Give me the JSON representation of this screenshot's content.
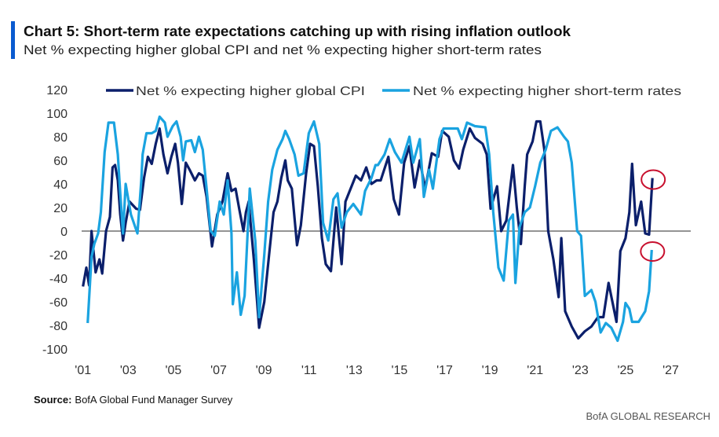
{
  "header": {
    "title": "Chart 5: Short-term rate expectations catching up with rising inflation outlook",
    "subtitle": "Net % expecting higher global CPI and net % expecting higher short-term rates",
    "accent_color": "#0a5bd0"
  },
  "footer": {
    "source_label": "Source:",
    "source_text": "BofA Global Fund Manager Survey",
    "brand": "BofA GLOBAL RESEARCH"
  },
  "chart_data": {
    "type": "line",
    "title": "",
    "xlabel": "",
    "ylabel": "",
    "ylim": [
      -100,
      120
    ],
    "xlim": [
      2001,
      2027
    ],
    "y_ticks": [
      "120",
      "100",
      "80",
      "60",
      "40",
      "20",
      "0",
      "-20",
      "-40",
      "-60",
      "-80",
      "-100"
    ],
    "x_ticks": [
      "'01",
      "'03",
      "'05",
      "'07",
      "'09",
      "'11",
      "'13",
      "'15",
      "'17",
      "'19",
      "'21",
      "'23",
      "'25",
      "'27"
    ],
    "grid": false,
    "zero_line": true,
    "legend_position": "top",
    "highlight": "red circles around the latest value of each series",
    "highlight_color": "#c8102e",
    "series": [
      {
        "name": "Net % expecting higher global CPI",
        "color": "#0b1f6b",
        "points": [
          [
            2001.0,
            -47
          ],
          [
            2001.15,
            -31
          ],
          [
            2001.27,
            -46
          ],
          [
            2001.38,
            0
          ],
          [
            2001.56,
            -35
          ],
          [
            2001.73,
            -24
          ],
          [
            2001.85,
            -36
          ],
          [
            2002.02,
            0
          ],
          [
            2002.19,
            12
          ],
          [
            2002.31,
            54
          ],
          [
            2002.42,
            56
          ],
          [
            2002.54,
            43
          ],
          [
            2002.65,
            14
          ],
          [
            2002.77,
            -8
          ],
          [
            2002.89,
            7
          ],
          [
            2003.06,
            25
          ],
          [
            2003.35,
            19
          ],
          [
            2003.52,
            18
          ],
          [
            2003.7,
            45
          ],
          [
            2003.87,
            63
          ],
          [
            2004.04,
            57
          ],
          [
            2004.22,
            74
          ],
          [
            2004.39,
            87
          ],
          [
            2004.56,
            65
          ],
          [
            2004.74,
            49
          ],
          [
            2004.91,
            63
          ],
          [
            2005.08,
            74
          ],
          [
            2005.2,
            58
          ],
          [
            2005.37,
            23
          ],
          [
            2005.55,
            58
          ],
          [
            2005.72,
            52
          ],
          [
            2005.95,
            43
          ],
          [
            2006.13,
            49
          ],
          [
            2006.3,
            47
          ],
          [
            2006.47,
            29
          ],
          [
            2006.71,
            -13
          ],
          [
            2006.94,
            14
          ],
          [
            2007.17,
            25
          ],
          [
            2007.4,
            49
          ],
          [
            2007.57,
            34
          ],
          [
            2007.75,
            36
          ],
          [
            2007.92,
            18
          ],
          [
            2008.1,
            0
          ],
          [
            2008.21,
            16
          ],
          [
            2008.33,
            25
          ],
          [
            2008.56,
            -24
          ],
          [
            2008.79,
            -82
          ],
          [
            2009.02,
            -60
          ],
          [
            2009.25,
            -17
          ],
          [
            2009.43,
            16
          ],
          [
            2009.6,
            25
          ],
          [
            2009.77,
            45
          ],
          [
            2009.95,
            60
          ],
          [
            2010.06,
            43
          ],
          [
            2010.24,
            36
          ],
          [
            2010.47,
            -12
          ],
          [
            2010.64,
            5
          ],
          [
            2010.87,
            49
          ],
          [
            2011.05,
            74
          ],
          [
            2011.22,
            72
          ],
          [
            2011.39,
            38
          ],
          [
            2011.57,
            -6
          ],
          [
            2011.74,
            -28
          ],
          [
            2011.97,
            -34
          ],
          [
            2012.2,
            20
          ],
          [
            2012.44,
            -28
          ],
          [
            2012.61,
            25
          ],
          [
            2012.84,
            36
          ],
          [
            2013.07,
            47
          ],
          [
            2013.3,
            43
          ],
          [
            2013.53,
            54
          ],
          [
            2013.76,
            40
          ],
          [
            2013.99,
            43
          ],
          [
            2014.17,
            43
          ],
          [
            2014.51,
            63
          ],
          [
            2014.75,
            27
          ],
          [
            2014.98,
            14
          ],
          [
            2015.21,
            58
          ],
          [
            2015.44,
            72
          ],
          [
            2015.67,
            37
          ],
          [
            2015.9,
            60
          ],
          [
            2016.14,
            36
          ],
          [
            2016.43,
            66
          ],
          [
            2016.71,
            63
          ],
          [
            2016.89,
            85
          ],
          [
            2017.18,
            80
          ],
          [
            2017.41,
            60
          ],
          [
            2017.64,
            53
          ],
          [
            2017.82,
            69
          ],
          [
            2018.11,
            87
          ],
          [
            2018.34,
            79
          ],
          [
            2018.68,
            74
          ],
          [
            2018.86,
            65
          ],
          [
            2019.03,
            19
          ],
          [
            2019.32,
            38
          ],
          [
            2019.5,
            0
          ],
          [
            2019.73,
            9
          ],
          [
            2020.02,
            56
          ],
          [
            2020.19,
            20
          ],
          [
            2020.37,
            -11
          ],
          [
            2020.54,
            38
          ],
          [
            2020.65,
            65
          ],
          [
            2020.89,
            76
          ],
          [
            2021.06,
            93
          ],
          [
            2021.23,
            93
          ],
          [
            2021.41,
            69
          ],
          [
            2021.58,
            0
          ],
          [
            2021.81,
            -24
          ],
          [
            2022.04,
            -56
          ],
          [
            2022.16,
            -6
          ],
          [
            2022.33,
            -68
          ],
          [
            2022.62,
            -81
          ],
          [
            2022.91,
            -91
          ],
          [
            2023.2,
            -85
          ],
          [
            2023.49,
            -81
          ],
          [
            2023.78,
            -73
          ],
          [
            2024.02,
            -73
          ],
          [
            2024.25,
            -44
          ],
          [
            2024.42,
            -60
          ],
          [
            2024.6,
            -77
          ],
          [
            2024.77,
            -17
          ],
          [
            2025.0,
            -6
          ],
          [
            2025.17,
            16
          ],
          [
            2025.29,
            57
          ],
          [
            2025.46,
            5
          ],
          [
            2025.69,
            25
          ],
          [
            2025.87,
            -2
          ],
          [
            2026.04,
            -3
          ],
          [
            2026.19,
            45
          ]
        ]
      },
      {
        "name": "Net % expecting higher short-term rates",
        "color": "#1aa3e0",
        "points": [
          [
            2001.21,
            -78
          ],
          [
            2001.38,
            -22
          ],
          [
            2001.5,
            -11
          ],
          [
            2001.67,
            -2
          ],
          [
            2001.79,
            16
          ],
          [
            2001.96,
            67
          ],
          [
            2002.13,
            92
          ],
          [
            2002.37,
            92
          ],
          [
            2002.54,
            65
          ],
          [
            2002.65,
            32
          ],
          [
            2002.77,
            -2
          ],
          [
            2002.89,
            40
          ],
          [
            2003.12,
            14
          ],
          [
            2003.41,
            -2
          ],
          [
            2003.58,
            43
          ],
          [
            2003.64,
            65
          ],
          [
            2003.81,
            83
          ],
          [
            2004.04,
            83
          ],
          [
            2004.22,
            85
          ],
          [
            2004.39,
            97
          ],
          [
            2004.62,
            92
          ],
          [
            2004.74,
            80
          ],
          [
            2004.97,
            89
          ],
          [
            2005.14,
            93
          ],
          [
            2005.32,
            80
          ],
          [
            2005.43,
            60
          ],
          [
            2005.55,
            76
          ],
          [
            2005.79,
            77
          ],
          [
            2005.95,
            67
          ],
          [
            2006.13,
            80
          ],
          [
            2006.3,
            69
          ],
          [
            2006.47,
            36
          ],
          [
            2006.65,
            0
          ],
          [
            2006.83,
            -4
          ],
          [
            2007.05,
            25
          ],
          [
            2007.23,
            14
          ],
          [
            2007.4,
            43
          ],
          [
            2007.57,
            -2
          ],
          [
            2007.63,
            -62
          ],
          [
            2007.81,
            -35
          ],
          [
            2007.98,
            -71
          ],
          [
            2008.15,
            -55
          ],
          [
            2008.38,
            36
          ],
          [
            2008.62,
            -8
          ],
          [
            2008.79,
            -73
          ],
          [
            2009.02,
            -20
          ],
          [
            2009.19,
            25
          ],
          [
            2009.37,
            52
          ],
          [
            2009.6,
            69
          ],
          [
            2009.83,
            78
          ],
          [
            2009.95,
            85
          ],
          [
            2010.12,
            78
          ],
          [
            2010.36,
            65
          ],
          [
            2010.53,
            47
          ],
          [
            2010.76,
            49
          ],
          [
            2010.99,
            83
          ],
          [
            2011.22,
            93
          ],
          [
            2011.45,
            74
          ],
          [
            2011.62,
            7
          ],
          [
            2011.85,
            -8
          ],
          [
            2012.08,
            27
          ],
          [
            2012.26,
            32
          ],
          [
            2012.44,
            3
          ],
          [
            2012.67,
            16
          ],
          [
            2012.96,
            23
          ],
          [
            2013.3,
            14
          ],
          [
            2013.48,
            34
          ],
          [
            2013.76,
            45
          ],
          [
            2013.94,
            56
          ],
          [
            2014.05,
            56
          ],
          [
            2014.34,
            65
          ],
          [
            2014.57,
            78
          ],
          [
            2014.8,
            67
          ],
          [
            2015.09,
            58
          ],
          [
            2015.44,
            80
          ],
          [
            2015.61,
            58
          ],
          [
            2015.9,
            78
          ],
          [
            2016.08,
            29
          ],
          [
            2016.31,
            52
          ],
          [
            2016.48,
            36
          ],
          [
            2016.77,
            78
          ],
          [
            2016.95,
            87
          ],
          [
            2017.29,
            87
          ],
          [
            2017.58,
            87
          ],
          [
            2017.76,
            78
          ],
          [
            2017.99,
            92
          ],
          [
            2018.34,
            89
          ],
          [
            2018.8,
            88
          ],
          [
            2018.97,
            65
          ],
          [
            2019.15,
            16
          ],
          [
            2019.38,
            -31
          ],
          [
            2019.61,
            -42
          ],
          [
            2019.84,
            9
          ],
          [
            2020.02,
            14
          ],
          [
            2020.13,
            -44
          ],
          [
            2020.31,
            3
          ],
          [
            2020.54,
            16
          ],
          [
            2020.77,
            20
          ],
          [
            2021.0,
            38
          ],
          [
            2021.23,
            58
          ],
          [
            2021.47,
            69
          ],
          [
            2021.7,
            85
          ],
          [
            2021.99,
            88
          ],
          [
            2022.28,
            80
          ],
          [
            2022.45,
            76
          ],
          [
            2022.62,
            58
          ],
          [
            2022.86,
            0
          ],
          [
            2023.03,
            -4
          ],
          [
            2023.2,
            -55
          ],
          [
            2023.49,
            -50
          ],
          [
            2023.67,
            -60
          ],
          [
            2023.9,
            -86
          ],
          [
            2024.13,
            -78
          ],
          [
            2024.37,
            -82
          ],
          [
            2024.65,
            -93
          ],
          [
            2024.89,
            -77
          ],
          [
            2025.0,
            -61
          ],
          [
            2025.17,
            -66
          ],
          [
            2025.29,
            -77
          ],
          [
            2025.58,
            -77
          ],
          [
            2025.87,
            -68
          ],
          [
            2026.04,
            -51
          ],
          [
            2026.16,
            -16
          ]
        ]
      }
    ]
  }
}
